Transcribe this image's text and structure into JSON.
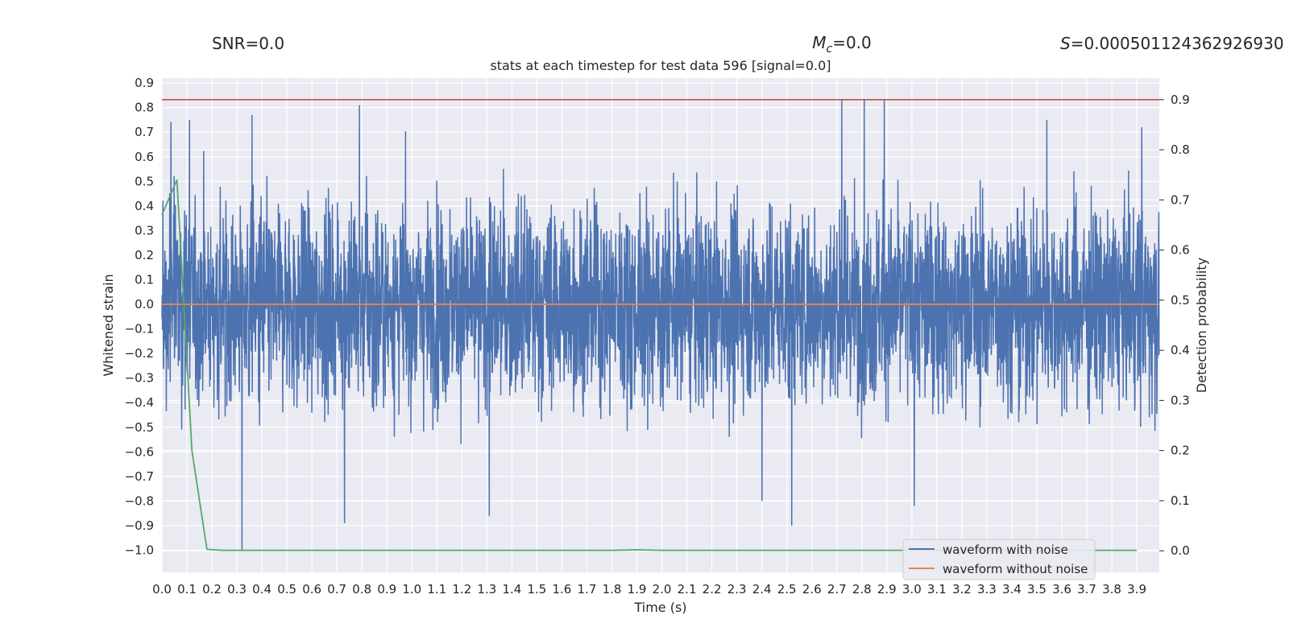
{
  "header": {
    "snr": "SNR=0.0",
    "mc_symbol": "M",
    "mc_sub": "c",
    "mc_value": "=0.0",
    "s_symbol": "S",
    "s_value": "=0.000501124362926930"
  },
  "chart_data": {
    "type": "line",
    "title": "stats at each timestep for test data 596 [signal=0.0]",
    "xlabel": "Time (s)",
    "ylabel_left": "Whitened strain",
    "ylabel_right": "Detection probability",
    "xlim": [
      0.0,
      3.99
    ],
    "ylim_left": [
      -1.09,
      0.92
    ],
    "ylim_right": [
      -0.043,
      0.943
    ],
    "xticks": [
      "0.0",
      "0.1",
      "0.2",
      "0.3",
      "0.4",
      "0.5",
      "0.6",
      "0.7",
      "0.8",
      "0.9",
      "1.0",
      "1.1",
      "1.2",
      "1.3",
      "1.4",
      "1.5",
      "1.6",
      "1.7",
      "1.8",
      "1.9",
      "2.0",
      "2.1",
      "2.2",
      "2.3",
      "2.4",
      "2.5",
      "2.6",
      "2.7",
      "2.8",
      "2.9",
      "3.0",
      "3.1",
      "3.2",
      "3.3",
      "3.4",
      "3.5",
      "3.6",
      "3.7",
      "3.8",
      "3.9"
    ],
    "yticks_left": [
      "0.9",
      "0.8",
      "0.7",
      "0.6",
      "0.5",
      "0.4",
      "0.3",
      "0.2",
      "0.1",
      "0.0",
      "−0.1",
      "−0.2",
      "−0.3",
      "−0.4",
      "−0.5",
      "−0.6",
      "−0.7",
      "−0.8",
      "−0.9",
      "−1.0"
    ],
    "yticks_right": [
      "0.9",
      "0.8",
      "0.7",
      "0.6",
      "0.5",
      "0.4",
      "0.3",
      "0.2",
      "0.1",
      "0.0"
    ],
    "grid": true,
    "legend_position": "bottom-right",
    "series": [
      {
        "name": "waveform with noise",
        "axis": "left",
        "color": "#4c72b0",
        "kind": "noise",
        "sample_rate_hz": 1024,
        "duration_s": 3.99,
        "amplitude_range": [
          -1.0,
          0.83
        ],
        "spikes": [
          {
            "x": 0.32,
            "y": -1.0
          },
          {
            "x": 0.36,
            "y": 0.77
          },
          {
            "x": 0.79,
            "y": 0.81
          },
          {
            "x": 0.73,
            "y": -0.89
          },
          {
            "x": 0.11,
            "y": 0.75
          },
          {
            "x": 1.31,
            "y": -0.86
          },
          {
            "x": 2.52,
            "y": -0.9
          },
          {
            "x": 2.4,
            "y": -0.8
          },
          {
            "x": 2.72,
            "y": 0.83
          },
          {
            "x": 2.81,
            "y": 0.83
          },
          {
            "x": 2.89,
            "y": 0.83
          },
          {
            "x": 3.01,
            "y": -0.82
          },
          {
            "x": 3.54,
            "y": 0.75
          },
          {
            "x": 3.92,
            "y": 0.72
          }
        ]
      },
      {
        "name": "waveform without noise",
        "axis": "left",
        "color": "#dd8452",
        "x": [
          0.0,
          3.99
        ],
        "y": [
          0.0,
          0.0
        ]
      },
      {
        "name": "",
        "axis": "right",
        "color": "#55a868",
        "x": [
          0.0,
          0.06,
          0.12,
          0.18,
          0.24,
          0.3,
          1.8,
          1.9,
          2.0,
          3.9
        ],
        "y": [
          0.67,
          0.74,
          0.2,
          0.003,
          0.001,
          0.001,
          0.001,
          0.002,
          0.001,
          0.001
        ]
      },
      {
        "name": "",
        "axis": "right",
        "color": "#c44e52",
        "x": [
          0.0,
          3.99
        ],
        "y": [
          0.9,
          0.9
        ]
      }
    ]
  }
}
